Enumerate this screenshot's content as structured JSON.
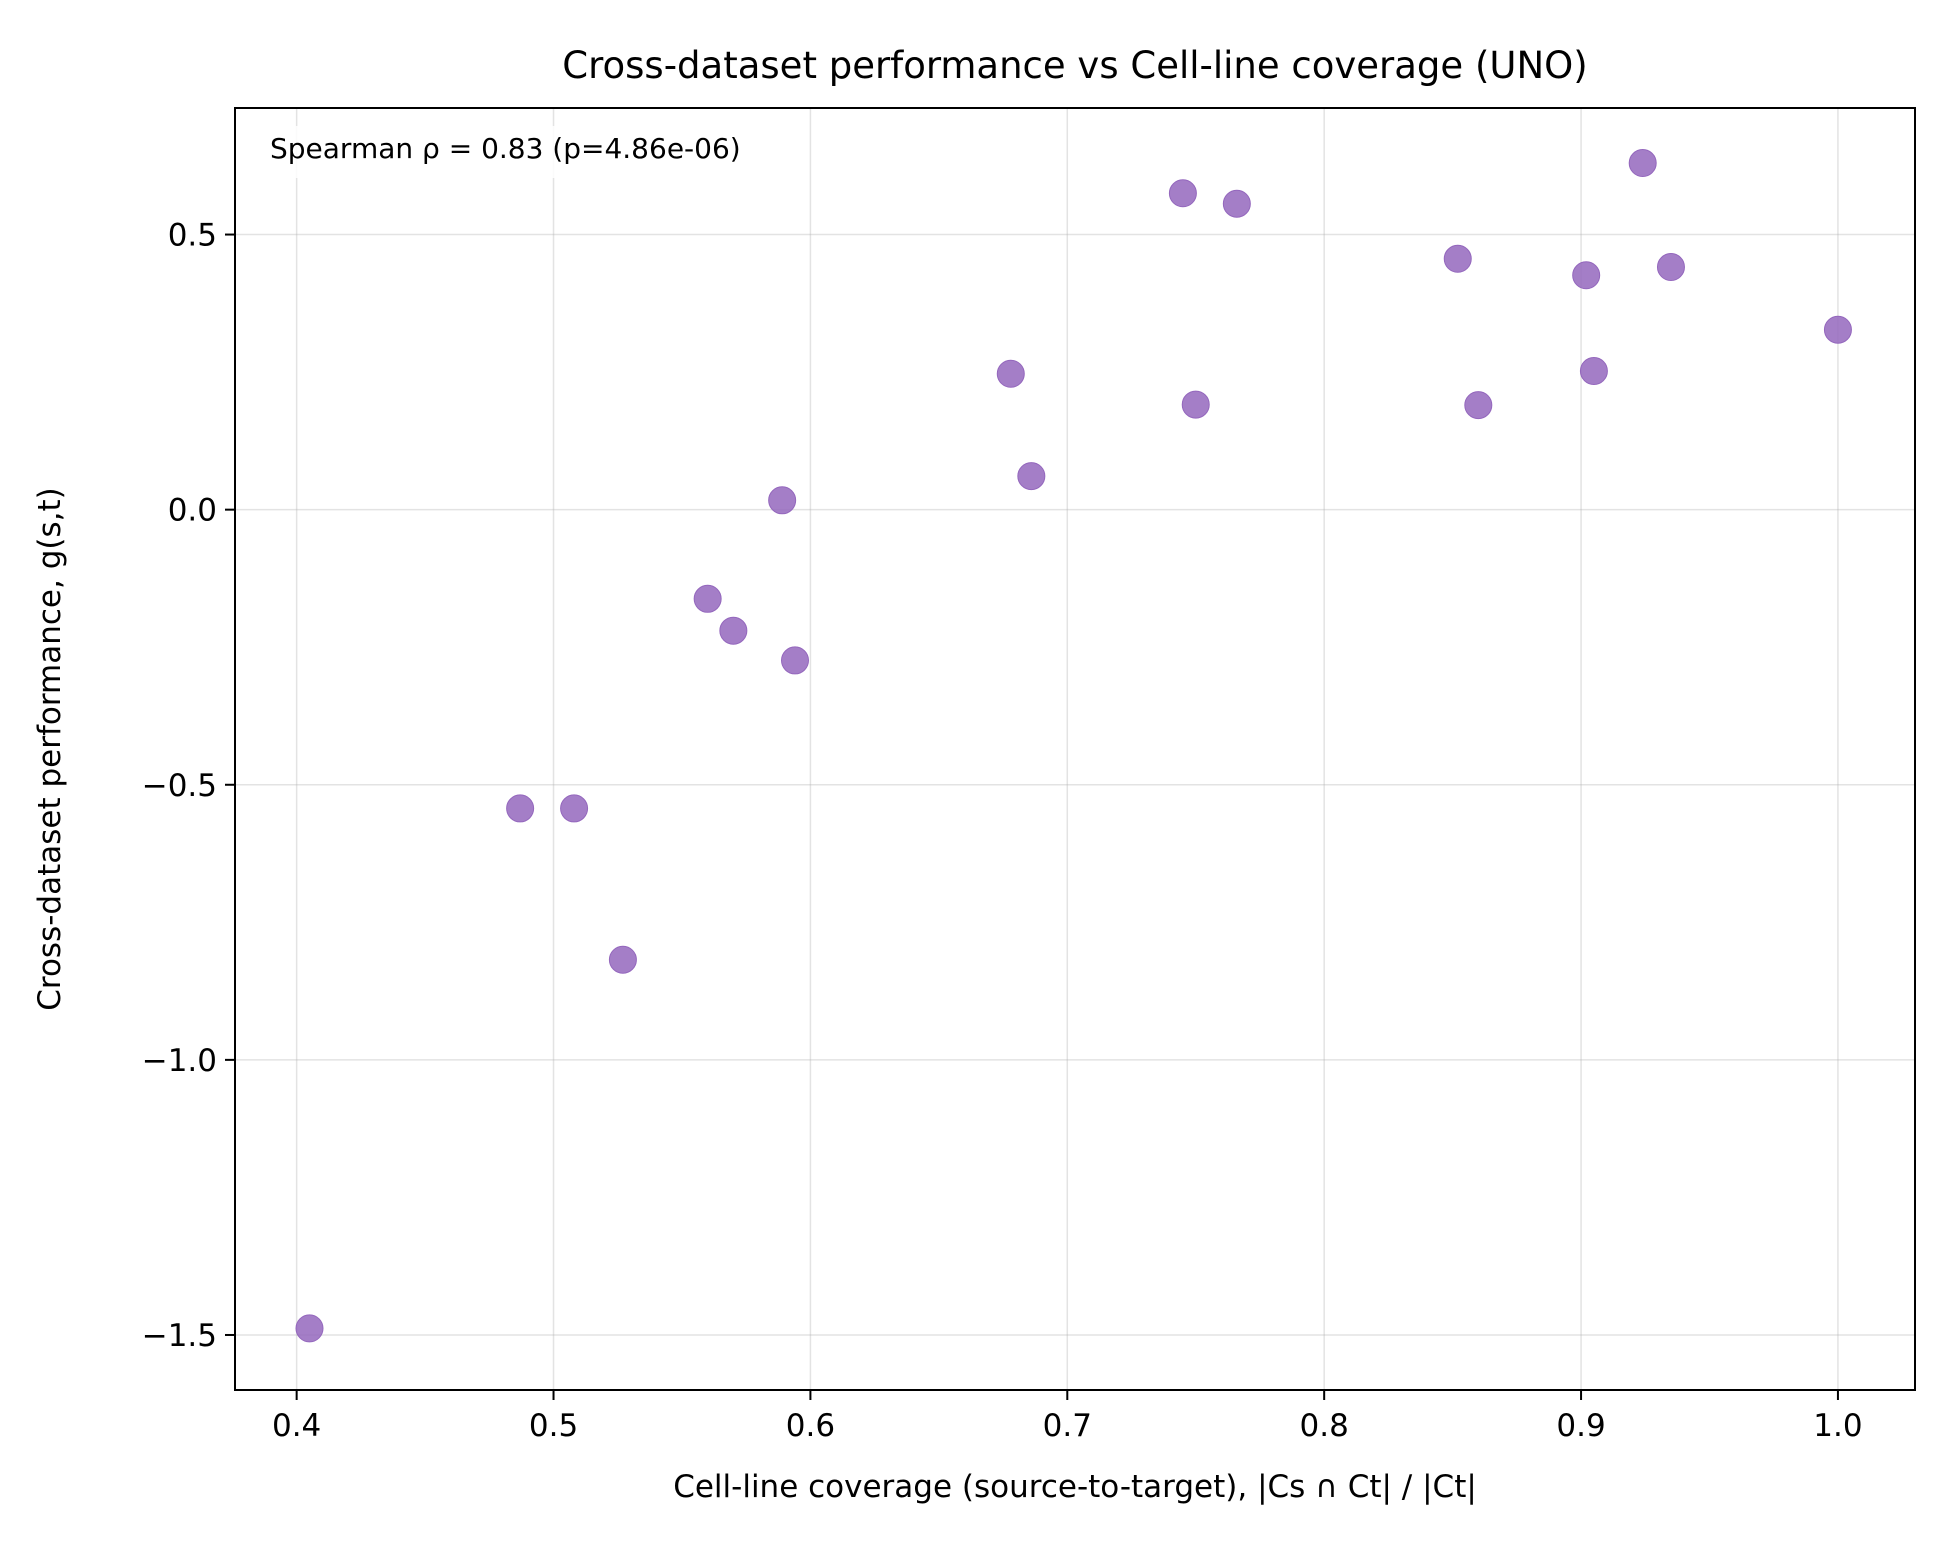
{
  "chart_data": {
    "type": "scatter",
    "title": "Cross-dataset performance vs Cell-line coverage (UNO)",
    "xlabel": "Cell-line coverage (source-to-target), |Cs ∩ Ct| / |Ct|",
    "ylabel": "Cross-dataset performance, g(s,t)",
    "annotation": "Spearman ρ = 0.83 (p=4.86e-06)",
    "xlim": [
      0.376,
      1.03
    ],
    "ylim": [
      -1.6,
      0.73
    ],
    "xticks": [
      0.4,
      0.5,
      0.6,
      0.7,
      0.8,
      0.9,
      1.0
    ],
    "xtick_labels": [
      "0.4",
      "0.5",
      "0.6",
      "0.7",
      "0.8",
      "0.9",
      "1.0"
    ],
    "yticks": [
      -1.5,
      -1.0,
      -0.5,
      0.0,
      0.5
    ],
    "ytick_labels": [
      "−1.5",
      "−1.0",
      "−0.5",
      "0.0",
      "0.5"
    ],
    "grid": true,
    "marker_color": "#9467bd",
    "points": [
      {
        "x": 0.405,
        "y": -1.488
      },
      {
        "x": 0.487,
        "y": -0.543
      },
      {
        "x": 0.508,
        "y": -0.543
      },
      {
        "x": 0.527,
        "y": -0.818
      },
      {
        "x": 0.56,
        "y": -0.162
      },
      {
        "x": 0.57,
        "y": -0.22
      },
      {
        "x": 0.589,
        "y": 0.017
      },
      {
        "x": 0.594,
        "y": -0.274
      },
      {
        "x": 0.678,
        "y": 0.247
      },
      {
        "x": 0.686,
        "y": 0.061
      },
      {
        "x": 0.745,
        "y": 0.575
      },
      {
        "x": 0.75,
        "y": 0.191
      },
      {
        "x": 0.766,
        "y": 0.556
      },
      {
        "x": 0.852,
        "y": 0.456
      },
      {
        "x": 0.86,
        "y": 0.19
      },
      {
        "x": 0.902,
        "y": 0.426
      },
      {
        "x": 0.905,
        "y": 0.252
      },
      {
        "x": 0.924,
        "y": 0.63
      },
      {
        "x": 0.935,
        "y": 0.441
      },
      {
        "x": 1.0,
        "y": 0.327
      }
    ]
  }
}
